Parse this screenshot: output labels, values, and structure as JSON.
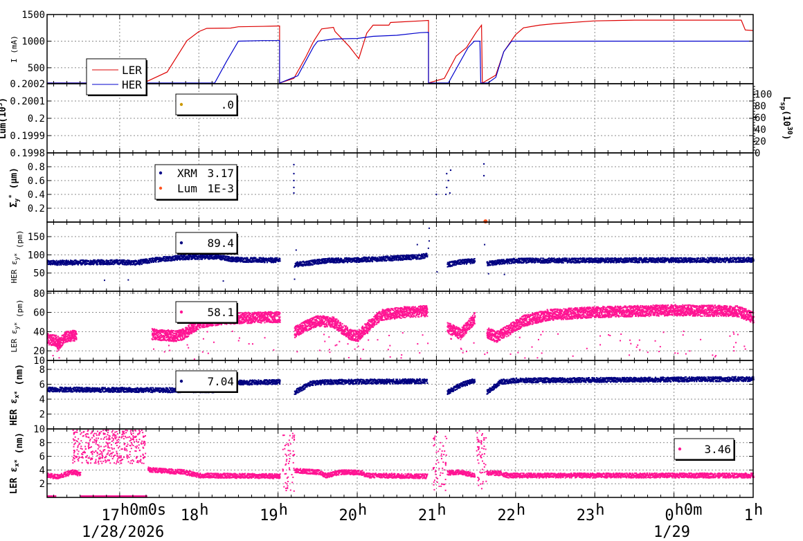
{
  "chart_data": {
    "type": "line",
    "x_axis": {
      "range": [
        "16:05",
        "25:00"
      ],
      "ticks": [
        {
          "h": 17,
          "label": "17",
          "sup": "h0m0s"
        },
        {
          "h": 18,
          "label": "18",
          "sup": "h"
        },
        {
          "h": 19,
          "label": "19",
          "sup": "h"
        },
        {
          "h": 20,
          "label": "20",
          "sup": "h"
        },
        {
          "h": 21,
          "label": "21",
          "sup": "h"
        },
        {
          "h": 22,
          "label": "22",
          "sup": "h"
        },
        {
          "h": 23,
          "label": "23",
          "sup": "h"
        },
        {
          "h": 24,
          "label": "0",
          "sup": "h0m"
        },
        {
          "h": 25,
          "label": "1",
          "sup": "h"
        }
      ],
      "date_left": "1/28/2026",
      "date_right": "1/29",
      "grid": true
    },
    "panels": [
      {
        "id": "current",
        "ylabel": "I (mA)",
        "ylim": [
          200,
          1500
        ],
        "yticks": [
          "500",
          "1000",
          "1500"
        ],
        "legend": {
          "entries": [
            "LER",
            "HER"
          ]
        },
        "series": [
          {
            "name": "LER",
            "color": "#dd0000",
            "points": [
              [
                16.08,
                205
              ],
              [
                17.3,
                205
              ],
              [
                17.6,
                420
              ],
              [
                17.85,
                1010
              ],
              [
                18.0,
                1180
              ],
              [
                18.1,
                1240
              ],
              [
                18.4,
                1245
              ],
              [
                18.5,
                1270
              ],
              [
                18.9,
                1280
              ],
              [
                19.02,
                1285
              ],
              [
                19.02,
                200
              ],
              [
                19.2,
                300
              ],
              [
                19.35,
                700
              ],
              [
                19.45,
                1000
              ],
              [
                19.55,
                1230
              ],
              [
                19.7,
                1260
              ],
              [
                19.72,
                1180
              ],
              [
                19.9,
                900
              ],
              [
                20.02,
                670
              ],
              [
                20.12,
                1150
              ],
              [
                20.2,
                1300
              ],
              [
                20.4,
                1300
              ],
              [
                20.42,
                1350
              ],
              [
                20.8,
                1380
              ],
              [
                20.9,
                1390
              ],
              [
                20.9,
                200
              ],
              [
                21.1,
                300
              ],
              [
                21.25,
                720
              ],
              [
                21.38,
                880
              ],
              [
                21.5,
                1160
              ],
              [
                21.57,
                1300
              ],
              [
                21.58,
                210
              ],
              [
                21.75,
                360
              ],
              [
                21.85,
                800
              ],
              [
                22.0,
                1120
              ],
              [
                22.1,
                1250
              ],
              [
                22.3,
                1300
              ],
              [
                22.5,
                1330
              ],
              [
                23.0,
                1380
              ],
              [
                23.5,
                1395
              ],
              [
                24.5,
                1395
              ],
              [
                24.85,
                1395
              ],
              [
                24.9,
                1210
              ],
              [
                25.0,
                1200
              ]
            ]
          },
          {
            "name": "HER",
            "color": "#0000cc",
            "points": [
              [
                16.08,
                205
              ],
              [
                18.2,
                205
              ],
              [
                18.35,
                620
              ],
              [
                18.5,
                1000
              ],
              [
                18.8,
                1010
              ],
              [
                19.02,
                1010
              ],
              [
                19.02,
                200
              ],
              [
                19.25,
                350
              ],
              [
                19.45,
                900
              ],
              [
                19.5,
                1000
              ],
              [
                19.7,
                1040
              ],
              [
                20.0,
                1050
              ],
              [
                20.2,
                1090
              ],
              [
                20.5,
                1110
              ],
              [
                20.8,
                1160
              ],
              [
                20.9,
                1165
              ],
              [
                20.9,
                200
              ],
              [
                21.15,
                200
              ],
              [
                21.4,
                880
              ],
              [
                21.48,
                1000
              ],
              [
                21.55,
                1000
              ],
              [
                21.56,
                200
              ],
              [
                21.6,
                200
              ],
              [
                21.65,
                200
              ],
              [
                21.75,
                320
              ],
              [
                21.85,
                800
              ],
              [
                21.95,
                1000
              ],
              [
                22.2,
                1000
              ],
              [
                25.0,
                1000
              ]
            ]
          }
        ]
      },
      {
        "id": "luminosity",
        "ylabel": "Lum(10",
        "ylabel_sup": "3",
        "ylabel_tail": ")",
        "ylim": [
          0.1998,
          0.2002
        ],
        "yticks": [
          "0.1998",
          "0.1999",
          "0.2",
          "0.2001",
          "0.2002"
        ],
        "right_axis": {
          "label": "L",
          "label_sub": "sp",
          "label_unit": "(10",
          "label_sup": "30",
          "label_end": ")",
          "ticks": [
            "0",
            "20",
            "40",
            "60",
            "80",
            "100"
          ]
        },
        "legend": {
          "entries": [
            {
              "label": "",
              "value": ".0",
              "color": "#cc9900"
            }
          ]
        }
      },
      {
        "id": "sigma_y",
        "ylabel": "Σ",
        "ylabel_sub": "y",
        "ylabel_sup": "*",
        "ylabel_unit": " (μm)",
        "ylim": [
          0,
          1.0
        ],
        "yticks": [
          "0.2",
          "0.4",
          "0.6",
          "0.8"
        ],
        "legend": {
          "entries": [
            {
              "label": "XRM",
              "value": "3.17",
              "color": "#000088"
            },
            {
              "label": "Lum",
              "value": "1E-3",
              "color": "#ff5522"
            }
          ]
        },
        "series": [
          {
            "name": "XRM",
            "color": "#000088",
            "points": [
              [
                19.2,
                0.83
              ],
              [
                19.2,
                0.7
              ],
              [
                19.2,
                0.6
              ],
              [
                19.2,
                0.5
              ],
              [
                19.2,
                0.42
              ],
              [
                21.13,
                0.7
              ],
              [
                21.15,
                0.6
              ],
              [
                21.18,
                0.75
              ],
              [
                21.13,
                0.5
              ],
              [
                21.12,
                0.4
              ],
              [
                21.17,
                0.42
              ],
              [
                21.0,
                0.4
              ],
              [
                21.6,
                0.84
              ],
              [
                21.6,
                0.67
              ]
            ]
          },
          {
            "name": "Lum",
            "color": "#ff5522",
            "points": [
              [
                21.62,
                0.0
              ]
            ]
          }
        ]
      },
      {
        "id": "her_eps_y",
        "ylabel": "HER ε",
        "ylabel_sub": "y*",
        "ylabel_unit": " (pm)",
        "ylim": [
          0,
          190
        ],
        "yticks": [
          "50",
          "100",
          "150"
        ],
        "legend": {
          "entries": [
            {
              "label": "",
              "value": "89.4",
              "color": "#000080"
            }
          ]
        },
        "color": "#000080",
        "segments": [
          [
            [
              16.08,
              80
            ],
            [
              17.0,
              82
            ],
            [
              17.2,
              80
            ],
            [
              17.5,
              90
            ],
            [
              17.8,
              95
            ],
            [
              18.2,
              97
            ],
            [
              18.4,
              90
            ],
            [
              18.6,
              88
            ],
            [
              19.02,
              87
            ]
          ],
          [
            [
              19.2,
              75
            ],
            [
              19.4,
              80
            ],
            [
              19.6,
              86
            ],
            [
              20.0,
              88
            ],
            [
              20.4,
              92
            ],
            [
              20.8,
              97
            ],
            [
              20.88,
              100
            ]
          ],
          [
            [
              21.13,
              75
            ],
            [
              21.3,
              82
            ],
            [
              21.48,
              85
            ]
          ],
          [
            [
              21.63,
              78
            ],
            [
              21.8,
              82
            ],
            [
              22.0,
              86
            ],
            [
              25.0,
              88
            ]
          ]
        ],
        "spikes": [
          [
            20.9,
            175
          ],
          [
            20.9,
            140
          ],
          [
            20.89,
            120
          ],
          [
            20.75,
            130
          ],
          [
            19.22,
            115
          ],
          [
            18.3,
            30
          ],
          [
            16.8,
            32
          ],
          [
            17.1,
            33
          ],
          [
            19.2,
            35
          ],
          [
            21.0,
            55
          ],
          [
            21.65,
            50
          ],
          [
            21.6,
            130
          ],
          [
            21.85,
            48
          ]
        ]
      },
      {
        "id": "ler_eps_y",
        "ylabel": "LER ε",
        "ylabel_sub": "y*",
        "ylabel_unit": " (pm)",
        "ylim": [
          10,
          82
        ],
        "yticks": [
          "10",
          "20",
          "40",
          "60",
          "80"
        ],
        "legend": {
          "entries": [
            {
              "label": "",
              "value": "58.1",
              "color": "#ff1493"
            }
          ]
        },
        "color": "#ff1493",
        "segments": [
          [
            [
              16.08,
              33
            ],
            [
              16.25,
              30
            ]
          ],
          [
            [
              16.2,
              25
            ],
            [
              16.3,
              35
            ],
            [
              16.45,
              37
            ]
          ],
          [
            [
              17.4,
              38
            ],
            [
              17.7,
              36
            ],
            [
              17.8,
              38
            ],
            [
              18.0,
              50
            ],
            [
              18.3,
              54
            ],
            [
              18.6,
              55
            ],
            [
              19.02,
              56
            ]
          ],
          [
            [
              19.2,
              40
            ],
            [
              19.3,
              45
            ],
            [
              19.5,
              52
            ],
            [
              19.7,
              50
            ],
            [
              19.9,
              38
            ],
            [
              20.0,
              36
            ],
            [
              20.15,
              48
            ],
            [
              20.3,
              58
            ],
            [
              20.6,
              61
            ],
            [
              20.88,
              62
            ]
          ],
          [
            [
              21.13,
              45
            ],
            [
              21.3,
              38
            ],
            [
              21.48,
              55
            ]
          ],
          [
            [
              21.63,
              40
            ],
            [
              21.75,
              35
            ],
            [
              21.9,
              42
            ],
            [
              22.1,
              52
            ],
            [
              22.4,
              58
            ],
            [
              23.0,
              61
            ],
            [
              24.0,
              63
            ],
            [
              24.8,
              62
            ],
            [
              25.0,
              55
            ]
          ]
        ]
      },
      {
        "id": "her_eps_x",
        "ylabel": "HER ε",
        "ylabel_sub": "x*",
        "ylabel_unit": " (nm)",
        "ylim": [
          0,
          9.2
        ],
        "yticks": [
          "2",
          "4",
          "6",
          "8"
        ],
        "legend": {
          "entries": [
            {
              "label": "",
              "value": "7.04",
              "color": "#000080"
            }
          ]
        },
        "color": "#000080",
        "segments": [
          [
            [
              16.08,
              5.4
            ],
            [
              17.5,
              5.3
            ],
            [
              18.2,
              5.3
            ],
            [
              18.35,
              5.6
            ],
            [
              18.5,
              6.3
            ],
            [
              19.02,
              6.4
            ]
          ],
          [
            [
              19.2,
              5.0
            ],
            [
              19.4,
              6.2
            ],
            [
              19.6,
              6.4
            ],
            [
              20.88,
              6.5
            ]
          ],
          [
            [
              21.13,
              5.0
            ],
            [
              21.3,
              6.0
            ],
            [
              21.48,
              6.6
            ]
          ],
          [
            [
              21.63,
              5.0
            ],
            [
              21.8,
              6.4
            ],
            [
              22.0,
              6.6
            ],
            [
              25.0,
              6.8
            ]
          ]
        ]
      },
      {
        "id": "ler_eps_x",
        "ylabel": "LER ε",
        "ylabel_sub": "x*",
        "ylabel_unit": " (nm)",
        "ylim": [
          0,
          10
        ],
        "yticks": [
          "2",
          "4",
          "6",
          "8",
          "10"
        ],
        "legend": {
          "entries": [
            {
              "label": "",
              "value": "3.46",
              "color": "#ff1493"
            }
          ]
        },
        "color": "#ff1493",
        "segments": [
          [
            [
              16.08,
              3.3
            ],
            [
              16.2,
              3.1
            ],
            [
              16.4,
              3.8
            ],
            [
              16.5,
              3.5
            ]
          ],
          [
            [
              17.35,
              4.2
            ],
            [
              17.5,
              4.0
            ],
            [
              17.8,
              3.8
            ],
            [
              18.0,
              3.3
            ],
            [
              19.02,
              3.2
            ]
          ],
          [
            [
              19.2,
              4.0
            ],
            [
              19.5,
              3.8
            ],
            [
              19.6,
              3.3
            ],
            [
              19.8,
              3.8
            ],
            [
              20.05,
              3.7
            ],
            [
              20.1,
              3.3
            ],
            [
              20.88,
              3.2
            ]
          ],
          [
            [
              21.13,
              3.7
            ],
            [
              21.3,
              3.8
            ],
            [
              21.48,
              3.3
            ]
          ],
          [
            [
              21.63,
              3.7
            ],
            [
              21.8,
              3.6
            ],
            [
              21.9,
              3.3
            ],
            [
              25.0,
              3.3
            ]
          ]
        ]
      }
    ]
  }
}
